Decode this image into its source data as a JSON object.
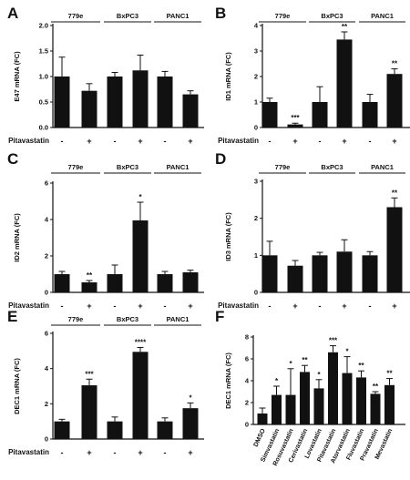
{
  "chart_data": [
    {
      "panel": "A",
      "type": "bar",
      "ylabel": "E47 mRNA (FC)",
      "ylim": [
        0,
        2.0
      ],
      "yticks": [
        "0.0",
        "0.5",
        "1.0",
        "1.5",
        "2.0"
      ],
      "groups": [
        "779e",
        "BxPC3",
        "PANC1"
      ],
      "treatment_label": "Pitavastatin",
      "treatment_values": [
        "-",
        "+"
      ],
      "values": [
        1.0,
        0.72,
        1.0,
        1.12,
        1.0,
        0.65
      ],
      "errors": [
        0.38,
        0.14,
        0.08,
        0.3,
        0.1,
        0.07
      ],
      "significance": [
        "",
        "",
        "",
        "",
        "",
        ""
      ]
    },
    {
      "panel": "B",
      "type": "bar",
      "ylabel": "ID1 mRNA (FC)",
      "ylim": [
        0,
        4
      ],
      "yticks": [
        "0",
        "1",
        "2",
        "3",
        "4"
      ],
      "groups": [
        "779e",
        "BxPC3",
        "PANC1"
      ],
      "treatment_label": "Pitavastatin",
      "treatment_values": [
        "-",
        "+"
      ],
      "values": [
        1.0,
        0.12,
        1.0,
        3.45,
        1.0,
        2.1
      ],
      "errors": [
        0.15,
        0.05,
        0.6,
        0.3,
        0.3,
        0.2
      ],
      "significance": [
        "",
        "***",
        "",
        "**",
        "",
        "**"
      ]
    },
    {
      "panel": "C",
      "type": "bar",
      "ylabel": "ID2 mRNA (FC)",
      "ylim": [
        0,
        6
      ],
      "yticks": [
        "0",
        "2",
        "4",
        "6"
      ],
      "groups": [
        "779e",
        "BxPC3",
        "PANC1"
      ],
      "treatment_label": "Pitavastatin",
      "treatment_values": [
        "-",
        "+"
      ],
      "values": [
        1.0,
        0.55,
        1.0,
        3.95,
        1.0,
        1.1
      ],
      "errors": [
        0.15,
        0.1,
        0.5,
        1.0,
        0.15,
        0.12
      ],
      "significance": [
        "",
        "**",
        "",
        "*",
        "",
        ""
      ]
    },
    {
      "panel": "D",
      "type": "bar",
      "ylabel": "ID3 mRNA (FC)",
      "ylim": [
        0,
        3
      ],
      "yticks": [
        "0",
        "1",
        "2",
        "3"
      ],
      "groups": [
        "779e",
        "BxPC3",
        "PANC1"
      ],
      "treatment_label": "Pitavastatin",
      "treatment_values": [
        "-",
        "+"
      ],
      "values": [
        1.0,
        0.72,
        1.0,
        1.1,
        1.0,
        2.3
      ],
      "errors": [
        0.38,
        0.14,
        0.08,
        0.32,
        0.1,
        0.25
      ],
      "significance": [
        "",
        "",
        "",
        "",
        "",
        "**"
      ]
    },
    {
      "panel": "E",
      "type": "bar",
      "ylabel": "DEC1 mRNA (FC)",
      "ylim": [
        0,
        6
      ],
      "yticks": [
        "0",
        "2",
        "4",
        "6"
      ],
      "groups": [
        "779e",
        "BxPC3",
        "PANC1"
      ],
      "treatment_label": "Pitavastatin",
      "treatment_values": [
        "-",
        "+"
      ],
      "values": [
        1.0,
        3.05,
        1.0,
        4.95,
        1.0,
        1.75
      ],
      "errors": [
        0.12,
        0.35,
        0.25,
        0.25,
        0.2,
        0.3
      ],
      "significance": [
        "",
        "***",
        "",
        "****",
        "",
        "*"
      ]
    },
    {
      "panel": "F",
      "type": "bar",
      "ylabel": "DEC1 mRNA (FC)",
      "ylim": [
        0,
        8
      ],
      "yticks": [
        "0",
        "2",
        "4",
        "6",
        "8"
      ],
      "categories": [
        "DMSO",
        "Simvastatin",
        "Rosuvastatin",
        "Cerivastatin",
        "Lovastatin",
        "Pitavastatin",
        "Atorvastatin",
        "Fluvastatin",
        "Pravastatin",
        "Mevastatin"
      ],
      "values": [
        1.0,
        2.7,
        2.7,
        4.8,
        3.3,
        6.6,
        4.7,
        4.3,
        2.8,
        3.6
      ],
      "errors": [
        0.5,
        0.8,
        2.4,
        0.6,
        0.8,
        0.6,
        1.5,
        0.6,
        0.2,
        0.6
      ],
      "significance": [
        "",
        "*",
        "*",
        "**",
        "*",
        "***",
        "*",
        "**",
        "**",
        "**"
      ]
    }
  ]
}
